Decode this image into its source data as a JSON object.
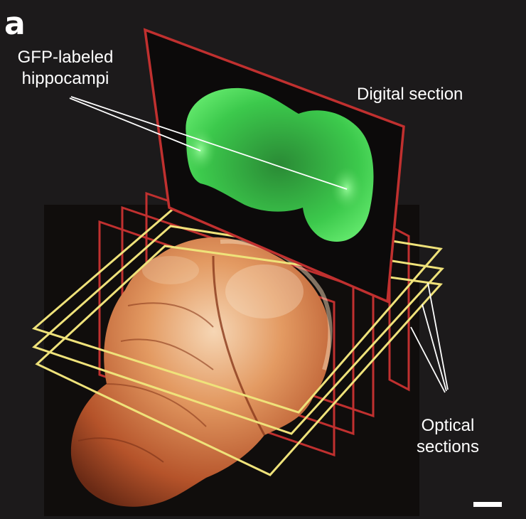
{
  "panel_letter": "a",
  "labels": {
    "gfp_line1": "GFP-labeled",
    "gfp_line2": "hippocampi",
    "digital_section": "Digital section",
    "optical_line1": "Optical",
    "optical_line2": "sections"
  },
  "colors": {
    "background": "#1c1a1b",
    "digital_frame": "#c0302f",
    "optical_frame": "#efe27a",
    "gfp": "#3cd24e",
    "brain": "#d9844e",
    "pointer": "#ffffff"
  }
}
